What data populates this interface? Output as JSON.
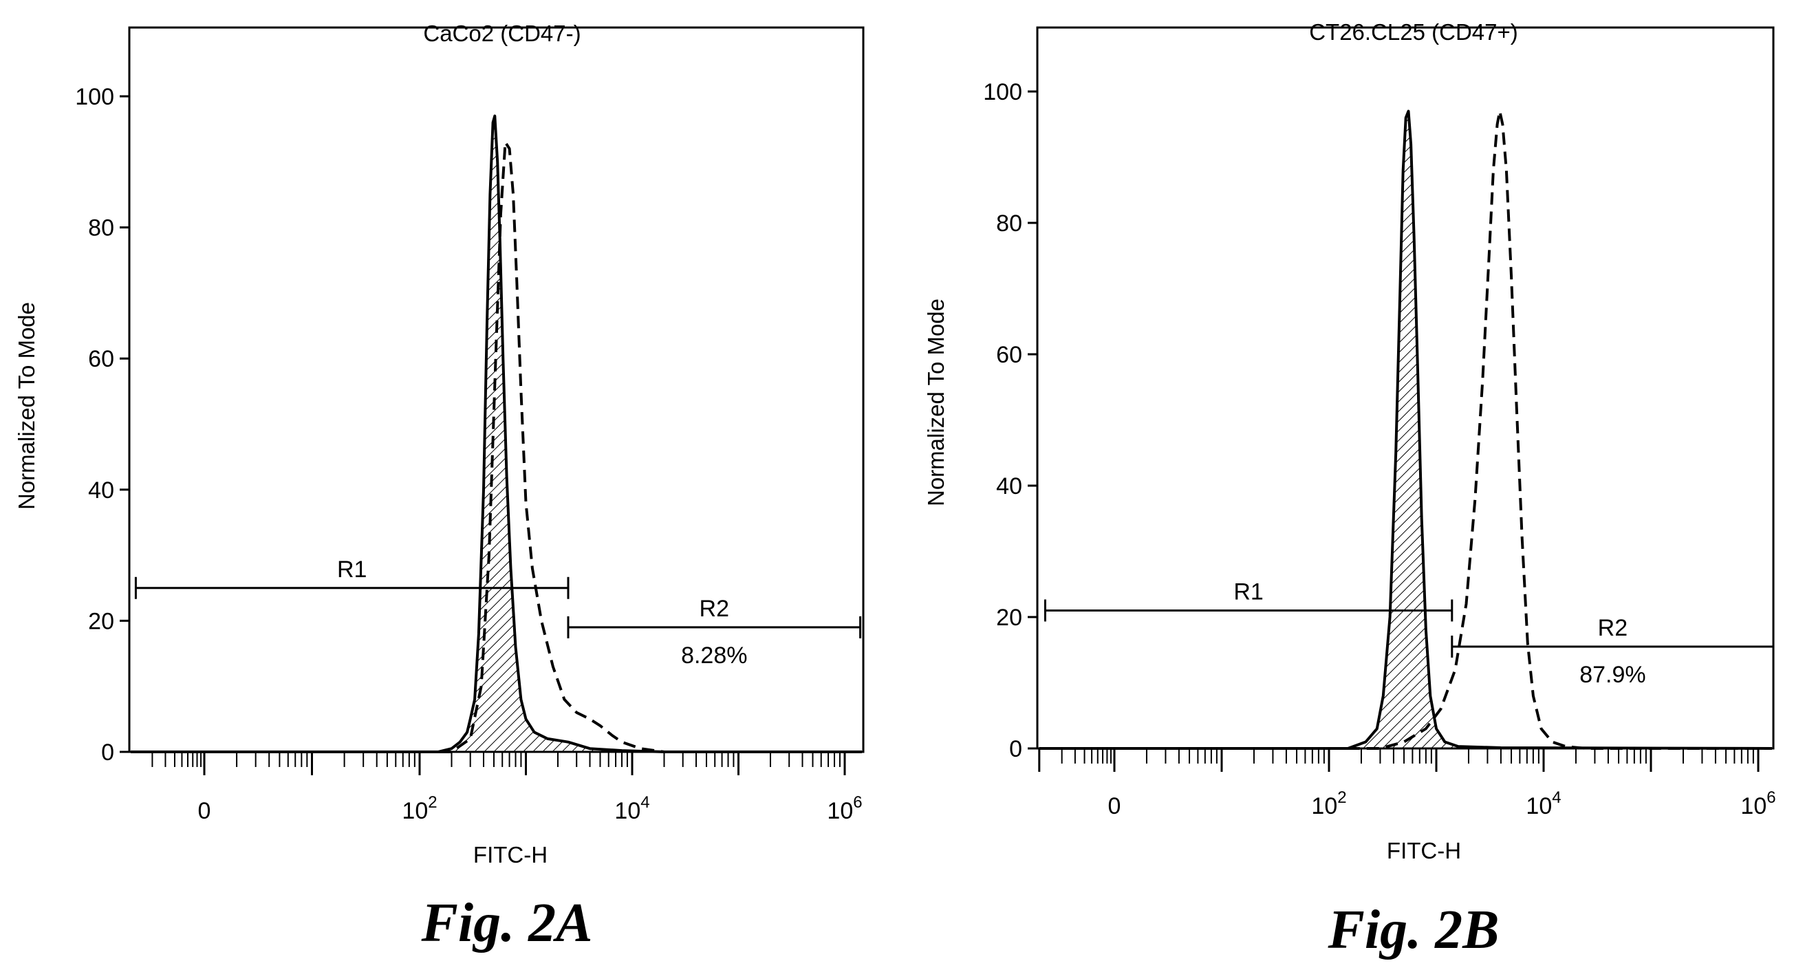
{
  "chart_data": [
    {
      "type": "histogram",
      "title": "CaCo2 (CD47-)",
      "xlabel": "FITC-H",
      "ylabel": "Normalized To Mode",
      "x_scale": "log",
      "x_ticks": [
        {
          "value": 1,
          "base": "0",
          "exp": ""
        },
        {
          "value": 100,
          "base": "10",
          "exp": "2"
        },
        {
          "value": 10000,
          "base": "10",
          "exp": "4"
        },
        {
          "value": 1000000,
          "base": "10",
          "exp": "6"
        }
      ],
      "y_ticks": [
        "0",
        "20",
        "40",
        "60",
        "80",
        "100"
      ],
      "ylim": [
        0,
        100
      ],
      "figure_label": "Fig. 2A",
      "series": [
        {
          "style": "solid-hatched",
          "points": [
            [
              0.1,
              0
            ],
            [
              150,
              0
            ],
            [
              200,
              0.5
            ],
            [
              240,
              1.5
            ],
            [
              280,
              3
            ],
            [
              300,
              5
            ],
            [
              330,
              8
            ],
            [
              360,
              18
            ],
            [
              400,
              40
            ],
            [
              430,
              65
            ],
            [
              460,
              85
            ],
            [
              490,
              96
            ],
            [
              510,
              97
            ],
            [
              540,
              90
            ],
            [
              570,
              78
            ],
            [
              610,
              60
            ],
            [
              660,
              42
            ],
            [
              720,
              28
            ],
            [
              800,
              16
            ],
            [
              900,
              8
            ],
            [
              1000,
              5
            ],
            [
              1200,
              3
            ],
            [
              1600,
              2
            ],
            [
              2500,
              1.5
            ],
            [
              4000,
              0.5
            ],
            [
              8000,
              0.2
            ],
            [
              20000,
              0
            ],
            [
              1500000,
              0
            ]
          ]
        },
        {
          "style": "dashed",
          "points": [
            [
              0.1,
              0
            ],
            [
              200,
              0
            ],
            [
              300,
              2
            ],
            [
              380,
              10
            ],
            [
              450,
              30
            ],
            [
              520,
              60
            ],
            [
              580,
              82
            ],
            [
              640,
              93
            ],
            [
              700,
              92
            ],
            [
              760,
              85
            ],
            [
              820,
              72
            ],
            [
              900,
              55
            ],
            [
              1000,
              38
            ],
            [
              1150,
              28
            ],
            [
              1400,
              20
            ],
            [
              1800,
              13
            ],
            [
              2300,
              8
            ],
            [
              3000,
              6
            ],
            [
              4000,
              5
            ],
            [
              5000,
              4
            ],
            [
              6500,
              2.5
            ],
            [
              8000,
              1.5
            ],
            [
              12000,
              0.5
            ],
            [
              20000,
              0
            ],
            [
              1500000,
              0
            ]
          ]
        }
      ],
      "gates": [
        {
          "name": "R1",
          "x_start": 0.12,
          "x_end": 2500,
          "y": 25,
          "percent": ""
        },
        {
          "name": "R2",
          "x_start": 2500,
          "x_end": 1400000,
          "y": 19,
          "percent": "8.28%"
        }
      ]
    },
    {
      "type": "histogram",
      "title": "CT26.CL25 (CD47+)",
      "xlabel": "FITC-H",
      "ylabel": "Normalized To Mode",
      "x_scale": "log",
      "x_ticks": [
        {
          "value": 1,
          "base": "0",
          "exp": ""
        },
        {
          "value": 100,
          "base": "10",
          "exp": "2"
        },
        {
          "value": 10000,
          "base": "10",
          "exp": "4"
        },
        {
          "value": 1000000,
          "base": "10",
          "exp": "6"
        }
      ],
      "y_ticks": [
        "0",
        "20",
        "40",
        "60",
        "80",
        "100"
      ],
      "ylim": [
        0,
        100
      ],
      "figure_label": "Fig. 2B",
      "series": [
        {
          "style": "solid-hatched",
          "points": [
            [
              0.1,
              0
            ],
            [
              150,
              0
            ],
            [
              220,
              1
            ],
            [
              280,
              3
            ],
            [
              320,
              8
            ],
            [
              370,
              20
            ],
            [
              420,
              45
            ],
            [
              460,
              70
            ],
            [
              490,
              88
            ],
            [
              520,
              96
            ],
            [
              550,
              97
            ],
            [
              580,
              92
            ],
            [
              620,
              78
            ],
            [
              670,
              58
            ],
            [
              730,
              35
            ],
            [
              800,
              18
            ],
            [
              880,
              8
            ],
            [
              1000,
              3
            ],
            [
              1200,
              1
            ],
            [
              1600,
              0.3
            ],
            [
              4000,
              0.1
            ],
            [
              1500000,
              0
            ]
          ]
        },
        {
          "style": "dashed",
          "points": [
            [
              0.1,
              0
            ],
            [
              300,
              0
            ],
            [
              500,
              1
            ],
            [
              800,
              3
            ],
            [
              1100,
              6
            ],
            [
              1500,
              12
            ],
            [
              1900,
              22
            ],
            [
              2300,
              38
            ],
            [
              2700,
              56
            ],
            [
              3100,
              75
            ],
            [
              3400,
              88
            ],
            [
              3700,
              95
            ],
            [
              3900,
              97
            ],
            [
              4150,
              95
            ],
            [
              4500,
              88
            ],
            [
              5000,
              72
            ],
            [
              5600,
              52
            ],
            [
              6300,
              32
            ],
            [
              7100,
              16
            ],
            [
              8000,
              8
            ],
            [
              9500,
              3
            ],
            [
              12000,
              1
            ],
            [
              16000,
              0.3
            ],
            [
              25000,
              0
            ],
            [
              1500000,
              0
            ]
          ]
        }
      ],
      "gates": [
        {
          "name": "R1",
          "x_start": 0.12,
          "x_end": 1400,
          "y": 21,
          "percent": ""
        },
        {
          "name": "R2",
          "x_start": 1400,
          "x_end": 1500000,
          "y": 15.5,
          "percent": "87.9%"
        }
      ]
    }
  ]
}
